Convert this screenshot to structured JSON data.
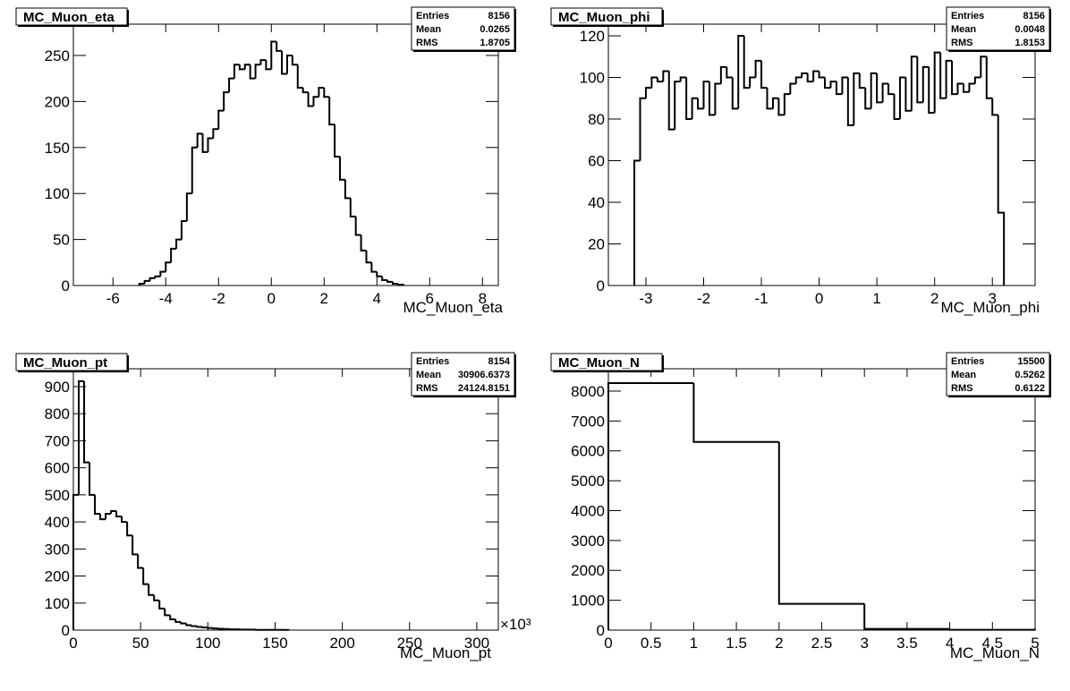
{
  "chart_data": [
    {
      "type": "histogram",
      "title": "MC_Muon_eta",
      "x_label": "MC_Muon_eta",
      "color": "#000000",
      "bins": [
        -5.0,
        -4.8,
        -4.6,
        -4.4,
        -4.2,
        -4.0,
        -3.8,
        -3.6,
        -3.4,
        -3.2,
        -3.0,
        -2.8,
        -2.6,
        -2.4,
        -2.2,
        -2.0,
        -1.8,
        -1.6,
        -1.4,
        -1.2,
        -1.0,
        -0.8,
        -0.6,
        -0.4,
        -0.2,
        0,
        0.2,
        0.4,
        0.6,
        0.8,
        1.0,
        1.2,
        1.4,
        1.6,
        1.8,
        2.0,
        2.2,
        2.4,
        2.6,
        2.8,
        3.0,
        3.2,
        3.4,
        3.6,
        3.8,
        4.0,
        4.2,
        4.4,
        4.6,
        4.8,
        5.0
      ],
      "values": [
        2,
        5,
        8,
        10,
        15,
        25,
        40,
        50,
        70,
        100,
        150,
        165,
        145,
        160,
        170,
        190,
        210,
        225,
        240,
        235,
        240,
        225,
        240,
        245,
        235,
        265,
        255,
        230,
        250,
        240,
        215,
        210,
        195,
        205,
        215,
        205,
        175,
        140,
        115,
        95,
        75,
        55,
        38,
        25,
        15,
        10,
        6,
        4,
        2,
        1
      ],
      "xlim": [
        -7.5,
        8.6
      ],
      "xticks": [
        -6,
        -4,
        -2,
        0,
        2,
        4,
        6,
        8
      ],
      "ylim": [
        0,
        284
      ],
      "yticks": [
        0,
        50,
        100,
        150,
        200,
        250
      ],
      "stats": [
        {
          "label": "Entries",
          "value": 8156
        },
        {
          "label": "Mean",
          "value": 0.0265
        },
        {
          "label": "RMS",
          "value": 1.8705
        }
      ]
    },
    {
      "type": "histogram",
      "title": "MC_Muon_phi",
      "x_label": "MC_Muon_phi",
      "color": "#000000",
      "bins": [
        -3.2,
        -3.1,
        -3.0,
        -2.9,
        -2.8,
        -2.7,
        -2.6,
        -2.5,
        -2.4,
        -2.3,
        -2.2,
        -2.1,
        -2.0,
        -1.9,
        -1.8,
        -1.7,
        -1.6,
        -1.5,
        -1.4,
        -1.3,
        -1.2,
        -1.1,
        -1.0,
        -0.9,
        -0.8,
        -0.7,
        -0.6,
        -0.5,
        -0.4,
        -0.3,
        -0.2,
        -0.1,
        0,
        0.1,
        0.2,
        0.3,
        0.4,
        0.5,
        0.6,
        0.7,
        0.8,
        0.9,
        1.0,
        1.1,
        1.2,
        1.3,
        1.4,
        1.5,
        1.6,
        1.7,
        1.8,
        1.9,
        2.0,
        2.1,
        2.2,
        2.3,
        2.4,
        2.5,
        2.6,
        2.7,
        2.8,
        2.9,
        3.0,
        3.1,
        3.2
      ],
      "values": [
        60,
        90,
        95,
        100,
        98,
        103,
        75,
        98,
        100,
        80,
        90,
        85,
        98,
        82,
        97,
        105,
        100,
        85,
        120,
        95,
        100,
        108,
        95,
        85,
        90,
        82,
        92,
        97,
        100,
        102,
        98,
        103,
        100,
        95,
        98,
        92,
        100,
        77,
        102,
        95,
        85,
        102,
        88,
        97,
        92,
        80,
        100,
        84,
        110,
        88,
        105,
        83,
        112,
        90,
        108,
        92,
        97,
        93,
        97,
        100,
        110,
        90,
        82,
        35
      ],
      "xlim": [
        -3.65,
        3.74
      ],
      "xticks": [
        -3,
        -2,
        -1,
        0,
        1,
        2,
        3
      ],
      "ylim": [
        0,
        125.6
      ],
      "yticks": [
        0,
        20,
        40,
        60,
        80,
        100,
        120
      ],
      "stats": [
        {
          "label": "Entries",
          "value": 8156
        },
        {
          "label": "Mean",
          "value": 0.0048
        },
        {
          "label": "RMS",
          "value": 1.8153
        }
      ]
    },
    {
      "type": "histogram",
      "title": "MC_Muon_pt",
      "x_label": "MC_Muon_pt",
      "x_exponent": "×10³",
      "color": "#000000",
      "bins": [
        0,
        4,
        8,
        12,
        16,
        20,
        24,
        28,
        32,
        36,
        40,
        44,
        48,
        52,
        56,
        60,
        64,
        68,
        72,
        76,
        80,
        84,
        88,
        92,
        96,
        100,
        104,
        108,
        112,
        116,
        120,
        124,
        128,
        132,
        136,
        140,
        144,
        148,
        152,
        156,
        160
      ],
      "values": [
        500,
        920,
        620,
        500,
        430,
        410,
        430,
        440,
        420,
        400,
        350,
        280,
        230,
        170,
        130,
        110,
        80,
        55,
        40,
        30,
        25,
        18,
        15,
        12,
        10,
        8,
        6,
        5,
        4,
        3,
        3,
        2,
        2,
        2,
        1,
        1,
        1,
        1,
        1,
        1
      ],
      "xlim": [
        0,
        316
      ],
      "xticks": [
        0,
        50,
        100,
        150,
        200,
        250,
        300
      ],
      "ylim": [
        0,
        966
      ],
      "yticks": [
        0,
        100,
        200,
        300,
        400,
        500,
        600,
        700,
        800,
        900
      ],
      "stats": [
        {
          "label": "Entries",
          "value": 8154
        },
        {
          "label": "Mean",
          "value": 30906.6373
        },
        {
          "label": "RMS",
          "value": 24124.8151
        }
      ]
    },
    {
      "type": "histogram",
      "title": "MC_Muon_N",
      "x_label": "MC_Muon_N",
      "color": "#000000",
      "bins": [
        0,
        1,
        2,
        3,
        4,
        5
      ],
      "values": [
        8270,
        6300,
        880,
        40,
        10
      ],
      "xlim": [
        0,
        5
      ],
      "xticks": [
        0,
        0.5,
        1,
        1.5,
        2,
        2.5,
        3,
        3.5,
        4,
        4.5,
        5
      ],
      "ylim": [
        0,
        8748
      ],
      "yticks": [
        0,
        1000,
        2000,
        3000,
        4000,
        5000,
        6000,
        7000,
        8000
      ],
      "stats": [
        {
          "label": "Entries",
          "value": 15500
        },
        {
          "label": "Mean",
          "value": 0.5262
        },
        {
          "label": "RMS",
          "value": 0.6122
        }
      ]
    }
  ]
}
